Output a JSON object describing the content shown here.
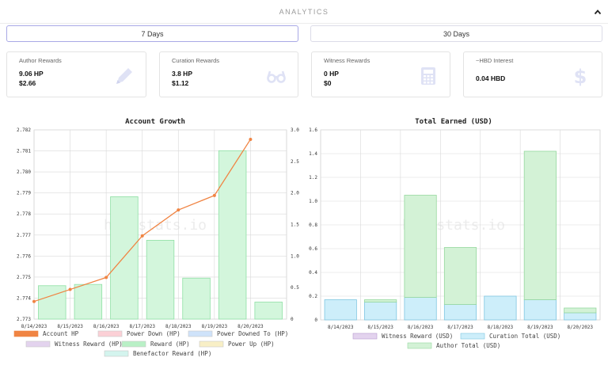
{
  "header": {
    "title": "ANALYTICS"
  },
  "tabs": [
    {
      "label": "7 Days",
      "active": true
    },
    {
      "label": "30 Days",
      "active": false
    }
  ],
  "cards": [
    {
      "title": "Author Rewards",
      "line1": "9.06 HP",
      "line2": "$2.66",
      "icon": "pencil-icon"
    },
    {
      "title": "Curation Rewards",
      "line1": "3.8 HP",
      "line2": "$1.12",
      "icon": "glasses-icon"
    },
    {
      "title": "Witness Rewards",
      "line1": "0 HP",
      "line2": "$0",
      "icon": "calculator-icon"
    },
    {
      "title": "~HBD Interest",
      "line1": "0.04 HBD",
      "line2": "",
      "icon": "dollar-icon"
    }
  ],
  "watermark": "hivestats.io",
  "colors": {
    "accent_line": "#f08443",
    "reward_green": "#90e8a8",
    "curation_blue": "#9dd8ef",
    "icon_gray": "#dfe2f5"
  },
  "chart_data": [
    {
      "type": "bar",
      "title": "Account Growth",
      "categories": [
        "8/14/2023",
        "8/15/2023",
        "8/16/2023",
        "8/17/2023",
        "8/18/2023",
        "8/19/2023",
        "8/20/2023"
      ],
      "left_axis": {
        "min": 2.773,
        "max": 2.782,
        "ticks": [
          "2.773",
          "2.774",
          "2.775",
          "2.776",
          "2.777",
          "2.778",
          "2.779",
          "2.780",
          "2.781",
          "2.782"
        ]
      },
      "right_axis": {
        "min": 0,
        "max": 3.0,
        "ticks": [
          "0",
          "0.5",
          "1.0",
          "1.5",
          "2.0",
          "2.5",
          "3.0"
        ]
      },
      "series": [
        {
          "name": "Account HP",
          "kind": "line",
          "axis": "right",
          "color": "#f08443",
          "values": [
            0.28,
            0.47,
            0.66,
            1.32,
            1.73,
            1.96,
            2.85
          ]
        },
        {
          "name": "Power Down (HP)",
          "kind": "bar",
          "color": "#fbd0d6",
          "values": [
            0,
            0,
            0,
            0,
            0,
            0,
            0
          ]
        },
        {
          "name": "Power Downed To (HP)",
          "kind": "bar",
          "color": "#cfe3fa",
          "values": [
            0,
            0,
            0,
            0,
            0,
            0,
            0
          ]
        },
        {
          "name": "Witness Reward (HP)",
          "kind": "bar",
          "color": "#e3d3ee",
          "values": [
            0,
            0,
            0,
            0,
            0,
            0,
            0
          ]
        },
        {
          "name": "Reward (HP)",
          "kind": "bar",
          "axis": "right",
          "color": "#b9f0c6",
          "values": [
            0.53,
            0.55,
            1.94,
            1.25,
            0.65,
            2.67,
            0.27
          ]
        },
        {
          "name": "Power Up (HP)",
          "kind": "bar",
          "color": "#f8efc6",
          "values": [
            0,
            0,
            0,
            0,
            0,
            0,
            0
          ]
        },
        {
          "name": "Benefactor Reward (HP)",
          "kind": "bar",
          "color": "#d4f4ee",
          "values": [
            0,
            0,
            0,
            0,
            0,
            0,
            0
          ]
        }
      ],
      "grid": true,
      "legend": "bottom"
    },
    {
      "type": "bar",
      "title": "Total Earned (USD)",
      "categories": [
        "8/14/2023",
        "8/15/2023",
        "8/16/2023",
        "8/17/2023",
        "8/18/2023",
        "8/19/2023",
        "8/20/2023"
      ],
      "y_axis": {
        "min": 0,
        "max": 1.6,
        "ticks": [
          "0",
          "0.2",
          "0.4",
          "0.6",
          "0.8",
          "1.0",
          "1.2",
          "1.4",
          "1.6"
        ]
      },
      "stacked": true,
      "series": [
        {
          "name": "Witness Reward (USD)",
          "color": "#e3d3ee",
          "values": [
            0,
            0,
            0,
            0,
            0,
            0,
            0
          ]
        },
        {
          "name": "Curation Total (USD)",
          "color": "#cdeefa",
          "values": [
            0.17,
            0.15,
            0.19,
            0.13,
            0.2,
            0.17,
            0.06
          ]
        },
        {
          "name": "Author Total (USD)",
          "color": "#d3f2d6",
          "values": [
            0,
            0.02,
            0.86,
            0.48,
            0,
            1.25,
            0.04
          ]
        }
      ],
      "grid": true,
      "legend": "bottom"
    }
  ]
}
